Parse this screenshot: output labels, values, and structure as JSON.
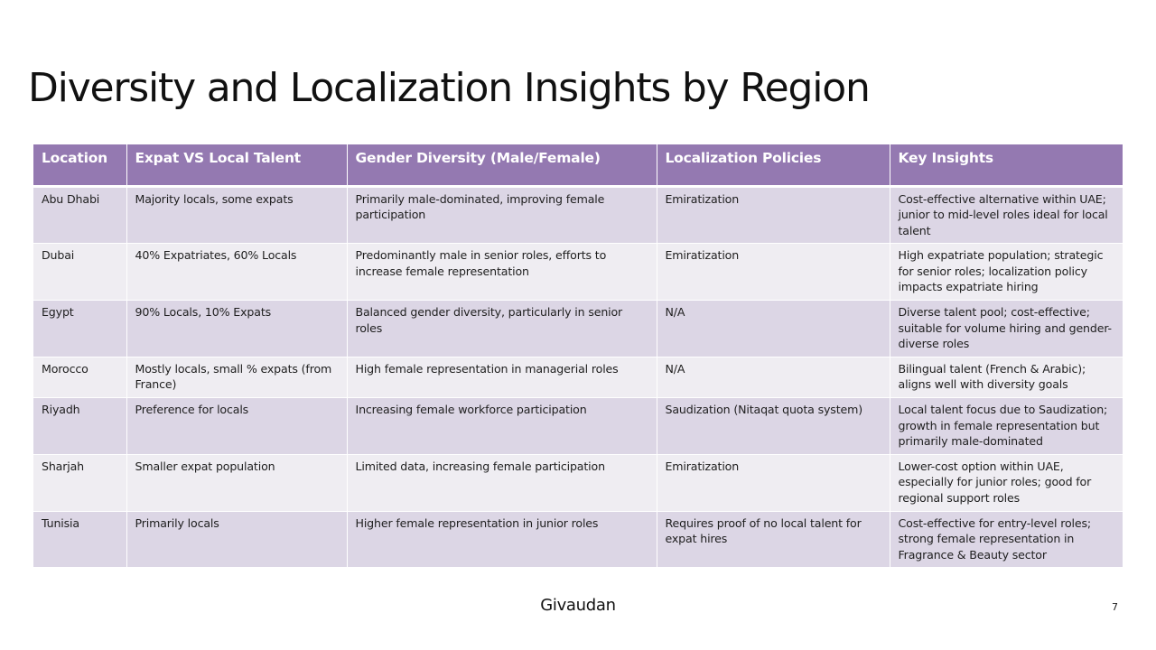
{
  "slide": {
    "title": "Diversity and Localization Insights by Region",
    "brand": "Givaudan",
    "page_number": "7"
  },
  "table": {
    "headers": [
      {
        "label": "Location"
      },
      {
        "label": "Expat VS Local Talent"
      },
      {
        "label": "Gender Diversity (Male/Female)"
      },
      {
        "label": "Localization Policies"
      },
      {
        "label": "Key Insights"
      }
    ],
    "rows": [
      {
        "location": "Abu Dhabi",
        "talent": "Majority locals, some expats",
        "gender": "Primarily male-dominated, improving female participation",
        "policy": "Emiratization",
        "insights": "Cost-effective alternative within UAE; junior to mid-level roles ideal for local talent"
      },
      {
        "location": "Dubai",
        "talent": "40% Expatriates, 60% Locals",
        "gender": "Predominantly male in senior roles, efforts to increase female representation",
        "policy": "Emiratization",
        "insights": "High expatriate population; strategic for senior roles; localization policy impacts expatriate hiring"
      },
      {
        "location": "Egypt",
        "talent": "90% Locals, 10% Expats",
        "gender": "Balanced gender diversity, particularly in senior roles",
        "policy": "N/A",
        "insights": "Diverse talent pool; cost-effective; suitable for volume hiring and gender-diverse roles"
      },
      {
        "location": "Morocco",
        "talent": "Mostly locals, small % expats (from France)",
        "gender": "High female representation in managerial roles",
        "policy": "N/A",
        "insights": "Bilingual talent (French & Arabic); aligns well with diversity goals"
      },
      {
        "location": "Riyadh",
        "talent": "Preference for locals",
        "gender": "Increasing female workforce participation",
        "policy": "Saudization (Nitaqat quota system)",
        "insights": "Local talent focus due to Saudization; growth in female representation but primarily male-dominated"
      },
      {
        "location": "Sharjah",
        "talent": "Smaller expat population",
        "gender": "Limited data, increasing female participation",
        "policy": "Emiratization",
        "insights": "Lower-cost option within UAE, especially for junior roles; good for regional support roles"
      },
      {
        "location": "Tunisia",
        "talent": "Primarily locals",
        "gender": "Higher female representation in junior roles",
        "policy": "Requires proof of no local talent for expat hires",
        "insights": "Cost-effective for entry-level roles; strong female representation in Fragrance & Beauty sector"
      }
    ]
  }
}
